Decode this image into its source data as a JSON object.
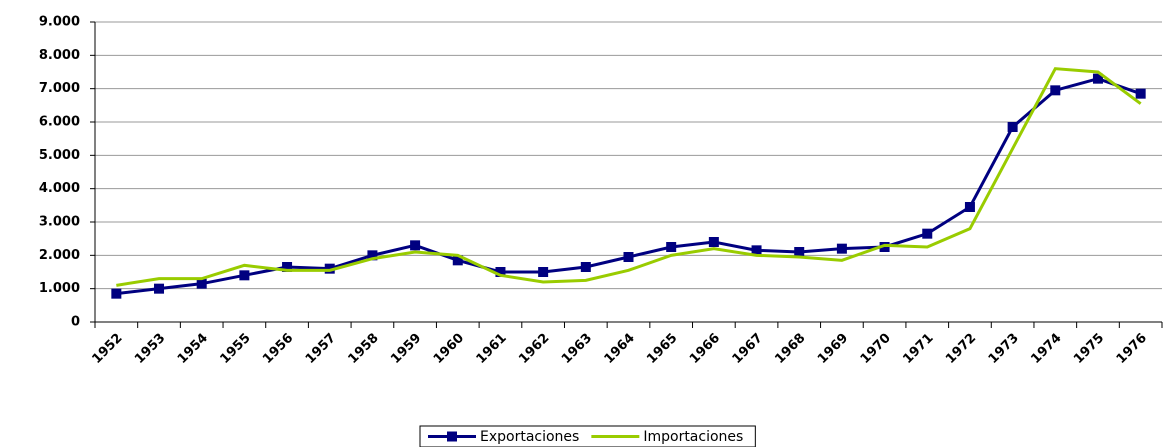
{
  "chart_data": {
    "type": "line",
    "categories": [
      "1952",
      "1953",
      "1954",
      "1955",
      "1956",
      "1957",
      "1958",
      "1959",
      "1960",
      "1961",
      "1962",
      "1963",
      "1964",
      "1965",
      "1966",
      "1967",
      "1968",
      "1969",
      "1970",
      "1971",
      "1972",
      "1973",
      "1974",
      "1975",
      "1976"
    ],
    "series": [
      {
        "name": "Exportaciones",
        "color": "#000080",
        "marker": "square",
        "values": [
          850,
          1000,
          1150,
          1400,
          1650,
          1600,
          2000,
          2300,
          1850,
          1500,
          1500,
          1650,
          1950,
          2250,
          2400,
          2150,
          2100,
          2200,
          2250,
          2650,
          3450,
          5850,
          6950,
          7300,
          6850
        ]
      },
      {
        "name": "Importaciones",
        "color": "#99cc00",
        "values": [
          1100,
          1300,
          1300,
          1700,
          1550,
          1550,
          1900,
          2100,
          2000,
          1400,
          1200,
          1250,
          1550,
          2000,
          2200,
          2000,
          1950,
          1850,
          2300,
          2250,
          2800,
          5200,
          7600,
          7500,
          6550
        ]
      }
    ],
    "ylim": [
      0,
      9000
    ],
    "yticks": [
      0,
      {
        "value": 1000,
        "label": "1.000"
      },
      {
        "value": 2000,
        "label": "2.000"
      },
      {
        "value": 3000,
        "label": "3.000"
      },
      {
        "value": 4000,
        "label": "4.000"
      },
      {
        "value": 5000,
        "label": "5.000"
      },
      {
        "value": 6000,
        "label": "6.000"
      },
      {
        "value": 7000,
        "label": "7.000"
      },
      {
        "value": 8000,
        "label": "8.000"
      },
      {
        "value": 9000,
        "label": "9.000"
      }
    ],
    "grid": true,
    "legend": "bottom"
  }
}
